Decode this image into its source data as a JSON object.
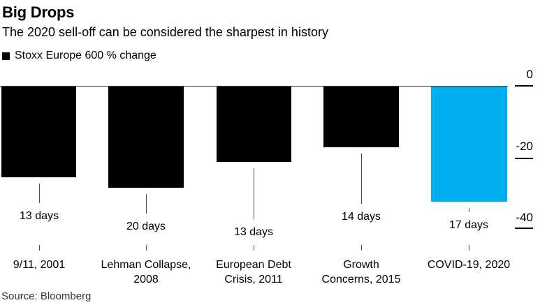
{
  "header": {
    "title": "Big Drops",
    "subtitle": "The 2020 sell-off can be considered the sharpest in history",
    "legend_label": "Stoxx Europe 600 % change"
  },
  "footer": {
    "source": "Source: Bloomberg"
  },
  "colors": {
    "bar_default": "#000000",
    "bar_highlight": "#00aeef",
    "axis_line": "#3d3d3d",
    "text": "#000000"
  },
  "chart_data": {
    "type": "bar",
    "title": "Big Drops",
    "subtitle": "The 2020 sell-off can be considered the sharpest in history",
    "series_label": "Stoxx Europe 600 % change",
    "categories": [
      "9/11, 2001",
      "Lehman Collapse, 2008",
      "European Debt Crisis, 2011",
      "Growth Concerns, 2015",
      "COVID-19, 2020"
    ],
    "category_labels": [
      "9/11, 2001",
      "Lehman Collapse,\n2008",
      "European Debt\nCrisis, 2011",
      "Growth\nConcerns, 2015",
      "COVID-19, 2020"
    ],
    "values": [
      -25.5,
      -28.5,
      -21.2,
      -17.1,
      -32.5
    ],
    "bar_labels": [
      "13 days",
      "20 days",
      "13 days",
      "14 days",
      "17 days"
    ],
    "highlight_index": 4,
    "highlight_color": "#00aeef",
    "bar_color": "#000000",
    "ylabel": "% change",
    "yticks": [
      0,
      -20,
      -40
    ],
    "ytick_labels": [
      "0",
      "-20",
      "-40"
    ],
    "ylim": [
      -40,
      0
    ],
    "y_axis_side": "right",
    "grid": false,
    "legend_position": "top-left",
    "source": "Source: Bloomberg"
  }
}
